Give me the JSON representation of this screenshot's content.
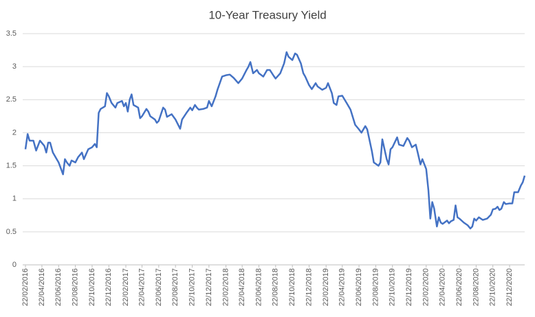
{
  "chart_data": {
    "type": "line",
    "title": "10-Year Treasury Yield",
    "x": [
      "2016-02-22",
      "2016-03-01",
      "2016-03-08",
      "2016-03-22",
      "2016-04-01",
      "2016-04-15",
      "2016-05-01",
      "2016-05-08",
      "2016-05-15",
      "2016-05-22",
      "2016-06-01",
      "2016-06-15",
      "2016-06-22",
      "2016-07-01",
      "2016-07-08",
      "2016-07-15",
      "2016-07-22",
      "2016-08-01",
      "2016-08-08",
      "2016-08-22",
      "2016-09-01",
      "2016-09-15",
      "2016-09-22",
      "2016-10-08",
      "2016-10-22",
      "2016-11-01",
      "2016-11-08",
      "2016-11-15",
      "2016-11-22",
      "2016-12-08",
      "2016-12-15",
      "2016-12-22",
      "2017-01-01",
      "2017-01-15",
      "2017-01-22",
      "2017-02-08",
      "2017-02-15",
      "2017-02-22",
      "2017-03-01",
      "2017-03-08",
      "2017-03-15",
      "2017-03-22",
      "2017-04-08",
      "2017-04-15",
      "2017-04-22",
      "2017-05-08",
      "2017-05-15",
      "2017-05-22",
      "2017-06-08",
      "2017-06-15",
      "2017-06-22",
      "2017-07-08",
      "2017-07-15",
      "2017-07-22",
      "2017-08-08",
      "2017-08-22",
      "2017-09-08",
      "2017-09-15",
      "2017-10-01",
      "2017-10-15",
      "2017-10-22",
      "2017-11-01",
      "2017-11-08",
      "2017-11-15",
      "2017-12-01",
      "2017-12-15",
      "2017-12-22",
      "2018-01-01",
      "2018-01-15",
      "2018-01-22",
      "2018-02-08",
      "2018-02-22",
      "2018-03-08",
      "2018-03-22",
      "2018-04-08",
      "2018-04-22",
      "2018-05-08",
      "2018-05-15",
      "2018-05-22",
      "2018-06-01",
      "2018-06-15",
      "2018-06-22",
      "2018-07-08",
      "2018-07-22",
      "2018-08-01",
      "2018-08-15",
      "2018-08-22",
      "2018-09-08",
      "2018-09-22",
      "2018-10-01",
      "2018-10-08",
      "2018-10-22",
      "2018-11-01",
      "2018-11-08",
      "2018-11-22",
      "2018-12-01",
      "2018-12-08",
      "2018-12-22",
      "2019-01-01",
      "2019-01-15",
      "2019-01-22",
      "2019-02-08",
      "2019-02-22",
      "2019-03-01",
      "2019-03-15",
      "2019-03-22",
      "2019-04-01",
      "2019-04-08",
      "2019-04-22",
      "2019-05-08",
      "2019-05-22",
      "2019-06-08",
      "2019-06-22",
      "2019-07-01",
      "2019-07-15",
      "2019-07-22",
      "2019-08-08",
      "2019-08-15",
      "2019-09-01",
      "2019-09-08",
      "2019-09-15",
      "2019-10-01",
      "2019-10-08",
      "2019-10-15",
      "2019-10-22",
      "2019-11-08",
      "2019-11-15",
      "2019-12-01",
      "2019-12-15",
      "2019-12-22",
      "2020-01-01",
      "2020-01-15",
      "2020-01-22",
      "2020-02-01",
      "2020-02-08",
      "2020-02-22",
      "2020-03-01",
      "2020-03-08",
      "2020-03-15",
      "2020-03-22",
      "2020-04-01",
      "2020-04-08",
      "2020-04-15",
      "2020-04-22",
      "2020-05-08",
      "2020-05-15",
      "2020-05-22",
      "2020-06-01",
      "2020-06-08",
      "2020-06-15",
      "2020-06-22",
      "2020-07-08",
      "2020-07-22",
      "2020-08-01",
      "2020-08-08",
      "2020-08-15",
      "2020-08-22",
      "2020-09-01",
      "2020-09-15",
      "2020-10-01",
      "2020-10-15",
      "2020-10-22",
      "2020-11-01",
      "2020-11-08",
      "2020-11-15",
      "2020-11-22",
      "2020-12-01",
      "2020-12-08",
      "2020-12-22",
      "2021-01-01",
      "2021-01-08",
      "2021-01-15",
      "2021-01-22",
      "2021-02-01",
      "2021-02-08",
      "2021-02-15"
    ],
    "series": [
      {
        "name": "10-Year Treasury Yield",
        "color": "#4472c4",
        "values": [
          1.75,
          1.98,
          1.88,
          1.88,
          1.73,
          1.88,
          1.8,
          1.7,
          1.85,
          1.85,
          1.7,
          1.6,
          1.55,
          1.45,
          1.37,
          1.6,
          1.55,
          1.5,
          1.58,
          1.55,
          1.63,
          1.7,
          1.6,
          1.75,
          1.78,
          1.83,
          1.78,
          2.3,
          2.36,
          2.4,
          2.6,
          2.55,
          2.45,
          2.38,
          2.45,
          2.48,
          2.4,
          2.45,
          2.32,
          2.5,
          2.58,
          2.42,
          2.38,
          2.22,
          2.25,
          2.36,
          2.32,
          2.25,
          2.2,
          2.15,
          2.18,
          2.38,
          2.35,
          2.24,
          2.28,
          2.2,
          2.06,
          2.2,
          2.3,
          2.38,
          2.34,
          2.42,
          2.38,
          2.35,
          2.36,
          2.38,
          2.48,
          2.4,
          2.55,
          2.65,
          2.85,
          2.87,
          2.88,
          2.83,
          2.75,
          2.82,
          2.95,
          3.0,
          3.07,
          2.9,
          2.95,
          2.9,
          2.85,
          2.95,
          2.95,
          2.86,
          2.82,
          2.9,
          3.05,
          3.22,
          3.15,
          3.1,
          3.2,
          3.18,
          3.05,
          2.9,
          2.85,
          2.72,
          2.66,
          2.75,
          2.7,
          2.65,
          2.68,
          2.75,
          2.6,
          2.45,
          2.42,
          2.55,
          2.56,
          2.45,
          2.35,
          2.12,
          2.05,
          2.0,
          2.1,
          2.05,
          1.72,
          1.55,
          1.5,
          1.55,
          1.9,
          1.6,
          1.52,
          1.75,
          1.78,
          1.93,
          1.82,
          1.8,
          1.92,
          1.88,
          1.78,
          1.82,
          1.7,
          1.52,
          1.6,
          1.45,
          1.13,
          0.7,
          0.95,
          0.85,
          0.58,
          0.72,
          0.64,
          0.62,
          0.67,
          0.63,
          0.66,
          0.68,
          0.9,
          0.72,
          0.7,
          0.64,
          0.6,
          0.55,
          0.58,
          0.7,
          0.67,
          0.72,
          0.68,
          0.7,
          0.76,
          0.84,
          0.85,
          0.88,
          0.83,
          0.85,
          0.95,
          0.92,
          0.93,
          0.93,
          1.1,
          1.1,
          1.1,
          1.2,
          1.25,
          1.35
        ]
      }
    ],
    "xlim": [
      "2016-02-22",
      "2021-02-15"
    ],
    "xticks": [
      {
        "value": "2016-02-22",
        "label": "22/02/2016"
      },
      {
        "value": "2016-04-22",
        "label": "22/04/2016"
      },
      {
        "value": "2016-06-22",
        "label": "22/06/2016"
      },
      {
        "value": "2016-08-22",
        "label": "22/08/2016"
      },
      {
        "value": "2016-10-22",
        "label": "22/10/2016"
      },
      {
        "value": "2016-12-22",
        "label": "22/12/2016"
      },
      {
        "value": "2017-02-22",
        "label": "22/02/2017"
      },
      {
        "value": "2017-04-22",
        "label": "22/04/2017"
      },
      {
        "value": "2017-06-22",
        "label": "22/06/2017"
      },
      {
        "value": "2017-08-22",
        "label": "22/08/2017"
      },
      {
        "value": "2017-10-22",
        "label": "22/10/2017"
      },
      {
        "value": "2017-12-22",
        "label": "22/12/2017"
      },
      {
        "value": "2018-02-22",
        "label": "22/02/2018"
      },
      {
        "value": "2018-04-22",
        "label": "22/04/2018"
      },
      {
        "value": "2018-06-22",
        "label": "22/06/2018"
      },
      {
        "value": "2018-08-22",
        "label": "22/08/2018"
      },
      {
        "value": "2018-10-22",
        "label": "22/10/2018"
      },
      {
        "value": "2018-12-22",
        "label": "22/12/2018"
      },
      {
        "value": "2019-02-22",
        "label": "22/02/2019"
      },
      {
        "value": "2019-04-22",
        "label": "22/04/2019"
      },
      {
        "value": "2019-06-22",
        "label": "22/06/2019"
      },
      {
        "value": "2019-08-22",
        "label": "22/08/2019"
      },
      {
        "value": "2019-10-22",
        "label": "22/10/2019"
      },
      {
        "value": "2019-12-22",
        "label": "22/12/2019"
      },
      {
        "value": "2020-02-22",
        "label": "22/02/2020"
      },
      {
        "value": "2020-04-22",
        "label": "22/04/2020"
      },
      {
        "value": "2020-06-22",
        "label": "22/06/2020"
      },
      {
        "value": "2020-08-22",
        "label": "22/08/2020"
      },
      {
        "value": "2020-10-22",
        "label": "22/10/2020"
      },
      {
        "value": "2020-12-22",
        "label": "22/12/2020"
      }
    ],
    "ylim": [
      0,
      3.5
    ],
    "yticks": [
      0,
      0.5,
      1,
      1.5,
      2,
      2.5,
      3,
      3.5
    ],
    "grid": true
  }
}
